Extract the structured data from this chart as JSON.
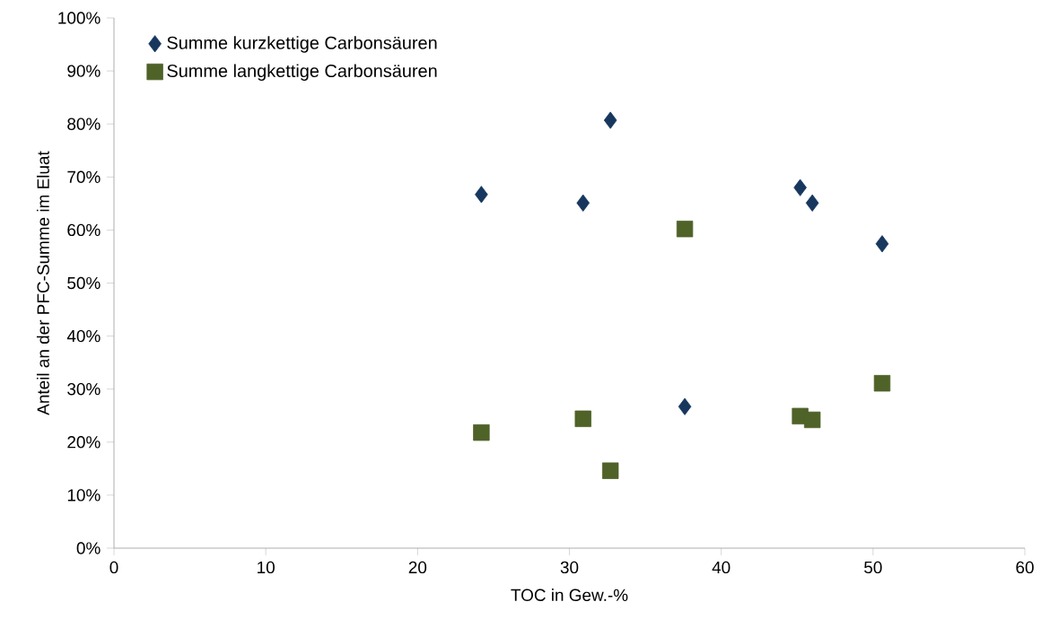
{
  "chart_data": {
    "type": "scatter",
    "xlabel": "TOC in Gew.-%",
    "ylabel": "Anteil an der PFC-Summe im Eluat",
    "xlim": [
      0,
      60
    ],
    "xticks": [
      0,
      10,
      20,
      30,
      40,
      50,
      60
    ],
    "ylim": [
      0,
      100
    ],
    "yticks": [
      {
        "value": 0,
        "label": "0%"
      },
      {
        "value": 10,
        "label": "10%"
      },
      {
        "value": 20,
        "label": "20%"
      },
      {
        "value": 30,
        "label": "30%"
      },
      {
        "value": 40,
        "label": "40%"
      },
      {
        "value": 50,
        "label": "50%"
      },
      {
        "value": 60,
        "label": "60%"
      },
      {
        "value": 70,
        "label": "70%"
      },
      {
        "value": 80,
        "label": "80%"
      },
      {
        "value": 90,
        "label": "90%"
      },
      {
        "value": 100,
        "label": "100%"
      }
    ],
    "legend": "top left",
    "series": [
      {
        "name": "Summe kurzkettige Carbonsäuren",
        "color": "#17375e",
        "marker": "diamond",
        "x": [
          24.2,
          30.9,
          32.7,
          37.6,
          45.2,
          46.0,
          50.6
        ],
        "values": [
          66.7,
          65.1,
          80.7,
          26.7,
          68.0,
          65.1,
          57.4
        ]
      },
      {
        "name": "Summe langkettige Carbonsäuren",
        "color": "#4f6228",
        "marker": "square",
        "x": [
          24.2,
          30.9,
          32.7,
          37.6,
          45.2,
          46.0,
          50.6
        ],
        "values": [
          21.8,
          24.4,
          14.6,
          60.2,
          24.9,
          24.2,
          31.1
        ]
      }
    ]
  }
}
